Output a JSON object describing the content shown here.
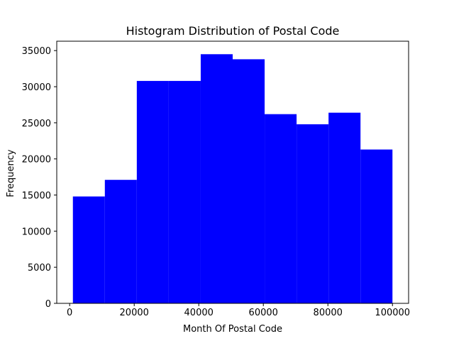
{
  "chart_data": {
    "type": "bar",
    "title": "Histogram Distribution of Postal Code",
    "xlabel": "Month Of Postal Code",
    "ylabel": "Frequency",
    "bar_color": "#0000ff",
    "bins": [
      {
        "x0": 1000,
        "x1": 10900,
        "value": 14800
      },
      {
        "x0": 10900,
        "x1": 20800,
        "value": 17100
      },
      {
        "x0": 20800,
        "x1": 30700,
        "value": 30800
      },
      {
        "x0": 30700,
        "x1": 40600,
        "value": 30800
      },
      {
        "x0": 40600,
        "x1": 50500,
        "value": 34500
      },
      {
        "x0": 50500,
        "x1": 60400,
        "value": 33800
      },
      {
        "x0": 60400,
        "x1": 70300,
        "value": 26200
      },
      {
        "x0": 70300,
        "x1": 80200,
        "value": 24800
      },
      {
        "x0": 80200,
        "x1": 90100,
        "value": 26400
      },
      {
        "x0": 90100,
        "x1": 100000,
        "value": 21300
      }
    ],
    "xlim": [
      -4000,
      105000
    ],
    "ylim": [
      0,
      36300
    ],
    "xticks": [
      0,
      20000,
      40000,
      60000,
      80000,
      100000
    ],
    "xtick_labels": [
      "0",
      "20000",
      "40000",
      "60000",
      "80000",
      "100000"
    ],
    "yticks": [
      0,
      5000,
      10000,
      15000,
      20000,
      25000,
      30000,
      35000
    ],
    "ytick_labels": [
      "0",
      "5000",
      "10000",
      "15000",
      "20000",
      "25000",
      "30000",
      "35000"
    ],
    "grid": false,
    "legend": false
  }
}
